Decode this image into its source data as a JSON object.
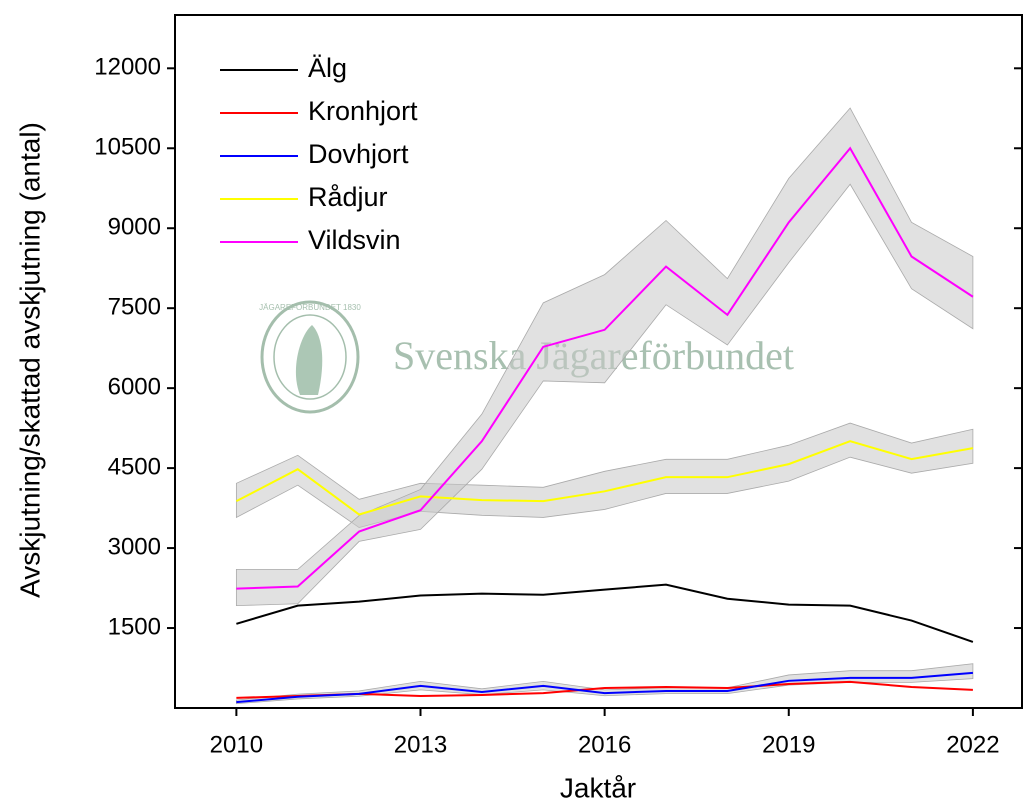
{
  "chart_data": {
    "type": "line",
    "y_label": "Avskjutning/skattad avskjutning (antal)",
    "x_label": "Jaktår",
    "watermark": "Svenska Jägareförbundet",
    "logo_text": "JÄGAREFÖRBUNDET 1830",
    "x": [
      2010,
      2011,
      2012,
      2013,
      2014,
      2015,
      2016,
      2017,
      2018,
      2019,
      2020,
      2021,
      2022
    ],
    "xlim": [
      2009,
      2022.8
    ],
    "xticks": [
      2010,
      2013,
      2016,
      2019,
      2022
    ],
    "ylim": [
      0,
      13000
    ],
    "yticks": [
      1500,
      3000,
      4500,
      6000,
      7500,
      9000,
      10500,
      12000
    ],
    "legend": "upper left",
    "band_color": "#c8c8c8",
    "series": [
      {
        "name": "Älg",
        "color": "#000000",
        "values": [
          1580,
          1920,
          1995,
          2110,
          2145,
          2125,
          2220,
          2315,
          2050,
          1940,
          1920,
          1640,
          1240
        ]
      },
      {
        "name": "Kronhjort",
        "color": "#ff0000",
        "values": [
          190,
          225,
          265,
          225,
          245,
          280,
          375,
          395,
          375,
          450,
          490,
          395,
          340
        ]
      },
      {
        "name": "Dovhjort",
        "color": "#0000ff",
        "values": [
          110,
          210,
          265,
          415,
          300,
          415,
          280,
          320,
          320,
          510,
          565,
          565,
          660
        ],
        "lower": [
          80,
          170,
          220,
          340,
          250,
          340,
          230,
          270,
          270,
          430,
          480,
          480,
          550
        ],
        "upper": [
          150,
          260,
          320,
          500,
          360,
          500,
          340,
          380,
          380,
          620,
          700,
          700,
          830
        ]
      },
      {
        "name": "Rådjur",
        "color": "#ffff00",
        "values": [
          3880,
          4480,
          3630,
          3970,
          3900,
          3880,
          4065,
          4330,
          4330,
          4575,
          5005,
          4670,
          4875
        ],
        "lower": [
          3575,
          4180,
          3385,
          3690,
          3615,
          3575,
          3725,
          4025,
          4025,
          4255,
          4705,
          4405,
          4590
        ],
        "upper": [
          4215,
          4740,
          3915,
          4215,
          4180,
          4140,
          4440,
          4665,
          4665,
          4930,
          5345,
          4970,
          5230
        ]
      },
      {
        "name": "Vildsvin",
        "color": "#ff00ff",
        "values": [
          2240,
          2280,
          3310,
          3710,
          5005,
          6775,
          7095,
          8280,
          7375,
          9110,
          10500,
          8470,
          7715
        ],
        "lower": [
          1920,
          1955,
          3125,
          3350,
          4480,
          6135,
          6100,
          7565,
          6810,
          8355,
          9825,
          7865,
          7115
        ],
        "upper": [
          2600,
          2600,
          3610,
          4100,
          5515,
          7600,
          8130,
          9145,
          8055,
          9935,
          11255,
          9110,
          8470
        ]
      }
    ]
  }
}
